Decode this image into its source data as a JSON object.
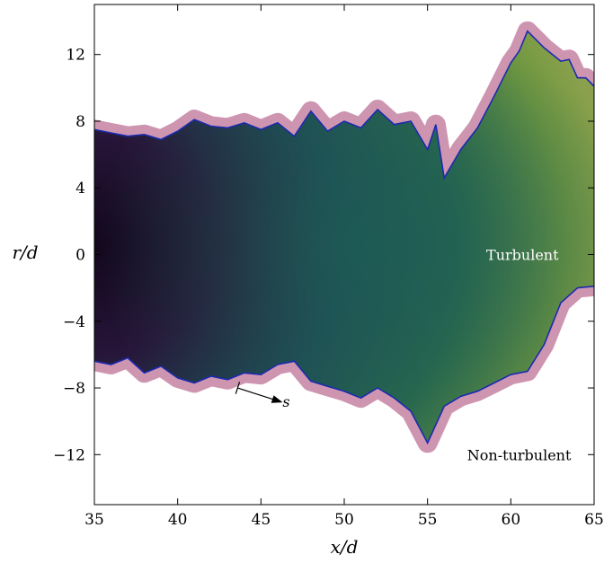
{
  "chart_data": {
    "type": "heatmap",
    "title": "",
    "xlabel": "x/d",
    "ylabel": "r/d",
    "xlim": [
      35,
      65
    ],
    "ylim": [
      -15,
      15
    ],
    "xticks": [
      35,
      40,
      45,
      50,
      55,
      60,
      65
    ],
    "yticks": [
      -12,
      -8,
      -4,
      0,
      4,
      8,
      12
    ],
    "grid": false,
    "colors": {
      "interface": "#1a2bb0",
      "core": "#1a0a26",
      "mid": "#1f5a55",
      "outer": "#5a8a3c",
      "edge": "#c98aa8"
    },
    "interface_upper": [
      [
        35,
        7.5
      ],
      [
        36,
        7.3
      ],
      [
        37,
        7.1
      ],
      [
        38,
        7.2
      ],
      [
        39,
        6.9
      ],
      [
        40,
        7.4
      ],
      [
        41,
        8.1
      ],
      [
        42,
        7.7
      ],
      [
        43,
        7.6
      ],
      [
        44,
        7.9
      ],
      [
        45,
        7.5
      ],
      [
        46,
        7.9
      ],
      [
        47,
        7.1
      ],
      [
        48,
        8.6
      ],
      [
        49,
        7.4
      ],
      [
        50,
        8.0
      ],
      [
        51,
        7.6
      ],
      [
        52,
        8.7
      ],
      [
        53,
        7.8
      ],
      [
        54,
        8.0
      ],
      [
        55,
        6.3
      ],
      [
        55.5,
        7.8
      ],
      [
        56,
        4.6
      ],
      [
        57,
        6.3
      ],
      [
        58,
        7.6
      ],
      [
        59,
        9.5
      ],
      [
        60,
        11.5
      ],
      [
        60.5,
        12.2
      ],
      [
        61,
        13.4
      ],
      [
        62,
        12.4
      ],
      [
        63,
        11.6
      ],
      [
        63.5,
        11.7
      ],
      [
        64,
        10.6
      ],
      [
        64.5,
        10.6
      ],
      [
        65,
        10.1
      ]
    ],
    "interface_lower": [
      [
        35,
        -6.4
      ],
      [
        36,
        -6.6
      ],
      [
        37,
        -6.2
      ],
      [
        38,
        -7.1
      ],
      [
        39,
        -6.7
      ],
      [
        40,
        -7.4
      ],
      [
        41,
        -7.7
      ],
      [
        42,
        -7.3
      ],
      [
        43,
        -7.5
      ],
      [
        44,
        -7.1
      ],
      [
        45,
        -7.2
      ],
      [
        46,
        -6.6
      ],
      [
        47,
        -6.4
      ],
      [
        48,
        -7.6
      ],
      [
        49,
        -7.9
      ],
      [
        50,
        -8.2
      ],
      [
        51,
        -8.6
      ],
      [
        52,
        -8.0
      ],
      [
        53,
        -8.6
      ],
      [
        54,
        -9.4
      ],
      [
        55,
        -11.3
      ],
      [
        56,
        -9.1
      ],
      [
        57,
        -8.5
      ],
      [
        58,
        -8.2
      ],
      [
        59,
        -7.7
      ],
      [
        60,
        -7.2
      ],
      [
        61,
        -7.0
      ],
      [
        62,
        -5.4
      ],
      [
        63,
        -2.9
      ],
      [
        64,
        -2.0
      ],
      [
        65,
        -1.9
      ]
    ],
    "annotations": [
      {
        "text": "Turbulent",
        "x": 60.7,
        "y": 0,
        "color": "#ffffff"
      },
      {
        "text": "Non-turbulent",
        "x": 60.5,
        "y": -12,
        "color": "#000000"
      },
      {
        "text": "s",
        "x": 46.3,
        "y": -8.8,
        "color": "#000000"
      }
    ]
  }
}
